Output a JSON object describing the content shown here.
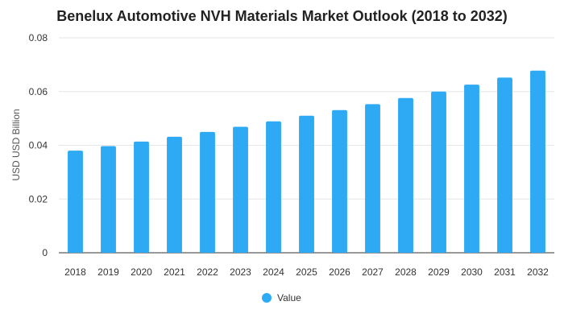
{
  "chart_data": {
    "type": "bar",
    "title": "Benelux Automotive NVH Materials Market Outlook (2018 to 2032)",
    "ylabel": "USD USD Billion",
    "xlabel": "",
    "categories": [
      "2018",
      "2019",
      "2020",
      "2021",
      "2022",
      "2023",
      "2024",
      "2025",
      "2026",
      "2027",
      "2028",
      "2029",
      "2030",
      "2031",
      "2032"
    ],
    "series": [
      {
        "name": "Value",
        "color": "#2eaaf5",
        "values": [
          0.038,
          0.0397,
          0.0414,
          0.0432,
          0.045,
          0.0469,
          0.0489,
          0.051,
          0.0531,
          0.0553,
          0.0576,
          0.06,
          0.0626,
          0.0652,
          0.0678
        ]
      }
    ],
    "ylim": [
      0,
      0.08
    ],
    "yticks": [
      "0",
      "0.02",
      "0.04",
      "0.06",
      "0.08"
    ],
    "grid": true,
    "legend_position": "bottom-center"
  }
}
